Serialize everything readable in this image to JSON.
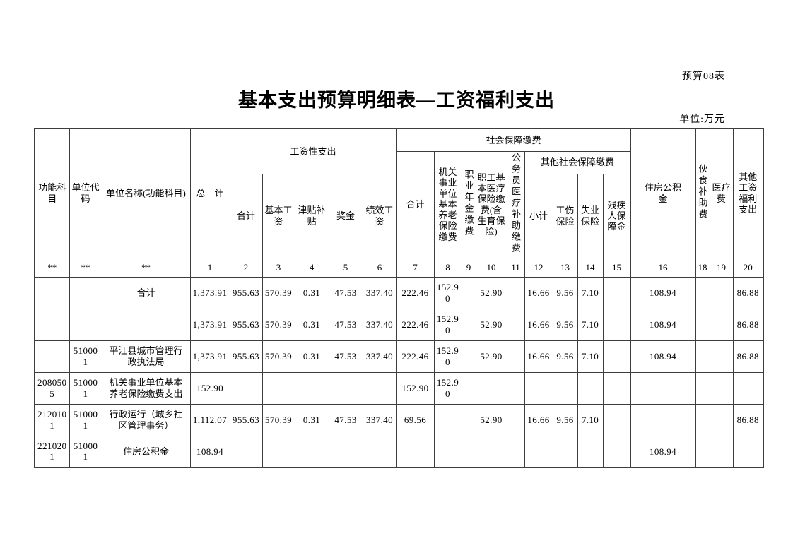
{
  "page": {
    "corner_label": "预算08表",
    "title": "基本支出预算明细表—工资福利支出",
    "unit_label": "单位:万元"
  },
  "table": {
    "headers": {
      "func_subject": "功能科目",
      "unit_code": "单位代码",
      "unit_name": "单位名称(功能科目)",
      "grand_total": "总　计",
      "salary_group": "工资性支出",
      "salary_sub": [
        "合计",
        "基本工资",
        "津贴补贴",
        "奖金",
        "绩效工资"
      ],
      "social_group": "社会保障缴费",
      "social_sub": [
        "合计",
        "机关事业单位基本养老保险缴费",
        "职业年金缴费",
        "职工基本医疗保险缴费(含生育保险)",
        "公务员医疗补助缴费"
      ],
      "other_social_group": "其他社会保障缴费",
      "other_social_sub": [
        "小计",
        "工伤保险",
        "失业保险",
        "残疾人保障金"
      ],
      "housing_fund": "住房公积金",
      "meal_allowance": "伙食补助费",
      "medical_fee": "医疗费",
      "other_welfare": "其他工资福利支出"
    },
    "col_numbers": [
      "**",
      "**",
      "**",
      "1",
      "2",
      "3",
      "4",
      "5",
      "6",
      "7",
      "8",
      "9",
      "10",
      "11",
      "12",
      "13",
      "14",
      "15",
      "16",
      "18",
      "19",
      "20"
    ],
    "rows": [
      [
        "",
        "",
        "合计",
        "1,373.91",
        "955.63",
        "570.39",
        "0.31",
        "47.53",
        "337.40",
        "222.46",
        "152.90",
        "",
        "52.90",
        "",
        "16.66",
        "9.56",
        "7.10",
        "",
        "108.94",
        "",
        "",
        "86.88"
      ],
      [
        "",
        "",
        "",
        "1,373.91",
        "955.63",
        "570.39",
        "0.31",
        "47.53",
        "337.40",
        "222.46",
        "152.90",
        "",
        "52.90",
        "",
        "16.66",
        "9.56",
        "7.10",
        "",
        "108.94",
        "",
        "",
        "86.88"
      ],
      [
        "",
        "510001",
        "平江县城市管理行政执法局",
        "1,373.91",
        "955.63",
        "570.39",
        "0.31",
        "47.53",
        "337.40",
        "222.46",
        "152.90",
        "",
        "52.90",
        "",
        "16.66",
        "9.56",
        "7.10",
        "",
        "108.94",
        "",
        "",
        "86.88"
      ],
      [
        "2080505",
        "510001",
        "机关事业单位基本养老保险缴费支出",
        "152.90",
        "",
        "",
        "",
        "",
        "",
        "152.90",
        "152.90",
        "",
        "",
        "",
        "",
        "",
        "",
        "",
        "",
        "",
        "",
        ""
      ],
      [
        "2120101",
        "510001",
        "行政运行（城乡社区管理事务）",
        "1,112.07",
        "955.63",
        "570.39",
        "0.31",
        "47.53",
        "337.40",
        "69.56",
        "",
        "",
        "52.90",
        "",
        "16.66",
        "9.56",
        "7.10",
        "",
        "",
        "",
        "",
        "86.88"
      ],
      [
        "2210201",
        "510001",
        "住房公积金",
        "108.94",
        "",
        "",
        "",
        "",
        "",
        "",
        "",
        "",
        "",
        "",
        "",
        "",
        "",
        "",
        "108.94",
        "",
        "",
        ""
      ]
    ]
  }
}
